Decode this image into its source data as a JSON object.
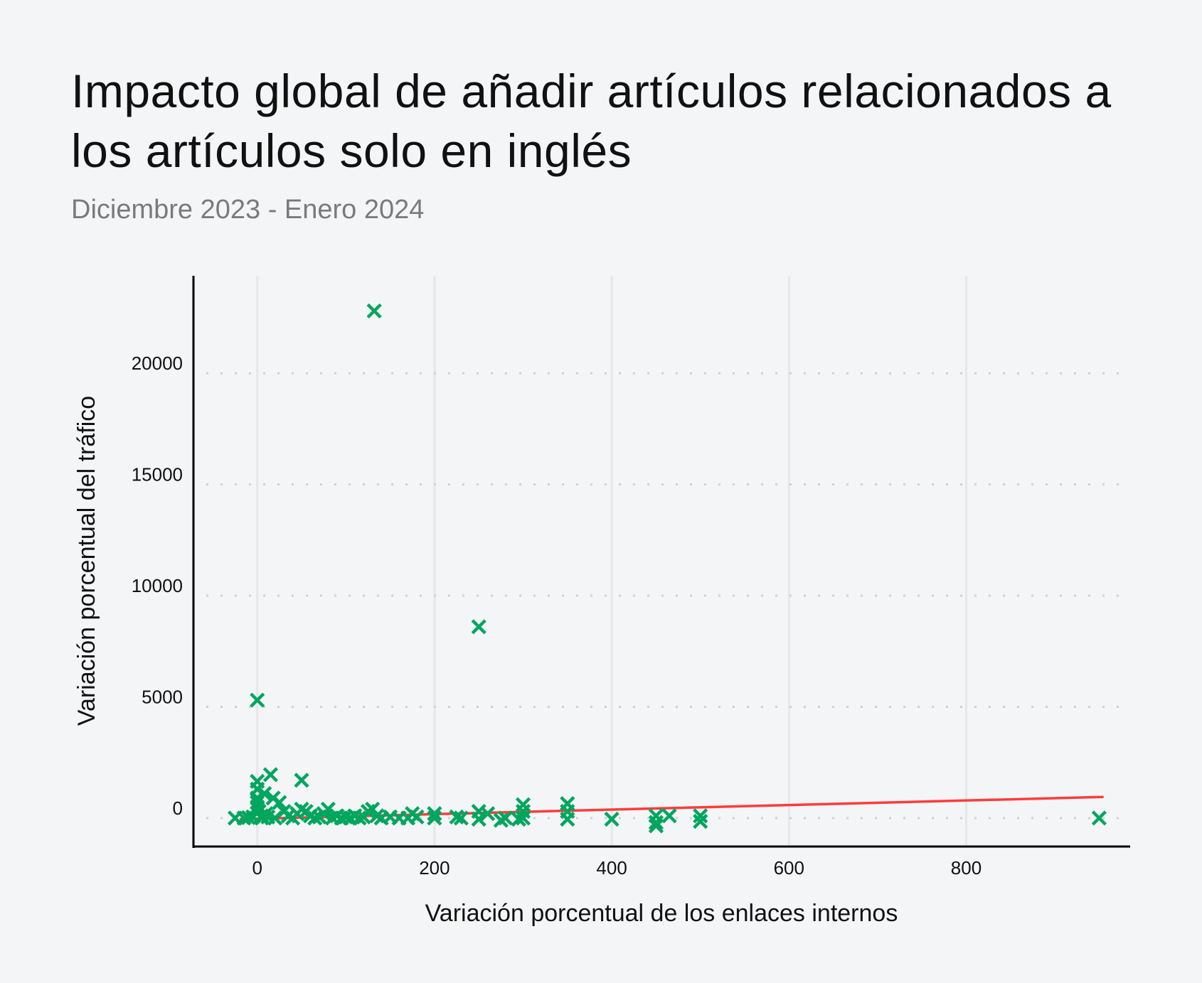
{
  "title": "Impacto global de añadir artículos relacionados a los artículos solo en inglés",
  "subtitle": "Diciembre 2023 - Enero 2024",
  "chart_data": {
    "type": "scatter",
    "title": "Impacto global de añadir artículos relacionados a los artículos solo en inglés",
    "subtitle": "Diciembre 2023 - Enero 2024",
    "xlabel": "Variación porcentual de los enlaces internos",
    "ylabel": "Variación porcentual del tráfico",
    "xlim": [
      -72,
      985
    ],
    "ylim": [
      -1280,
      24380
    ],
    "xticks": [
      0,
      200,
      400,
      600,
      800
    ],
    "yticks": [
      0,
      5000,
      10000,
      15000,
      20000
    ],
    "grid": {
      "x": "solid-light",
      "y": "dotted"
    },
    "colors": {
      "points": "#00a65e",
      "trendline": "#ff3b3b",
      "background": "#f4f5f7"
    },
    "marker": "x",
    "points": [
      [
        -25,
        0
      ],
      [
        -15,
        0
      ],
      [
        -10,
        20
      ],
      [
        -5,
        50
      ],
      [
        0,
        5300
      ],
      [
        0,
        1650
      ],
      [
        0,
        1300
      ],
      [
        0,
        900
      ],
      [
        0,
        700
      ],
      [
        0,
        500
      ],
      [
        2,
        300
      ],
      [
        5,
        100
      ],
      [
        5,
        0
      ],
      [
        8,
        1100
      ],
      [
        10,
        200
      ],
      [
        12,
        50
      ],
      [
        15,
        1950
      ],
      [
        18,
        900
      ],
      [
        20,
        0
      ],
      [
        25,
        700
      ],
      [
        30,
        300
      ],
      [
        35,
        100
      ],
      [
        40,
        0
      ],
      [
        45,
        200
      ],
      [
        50,
        1700
      ],
      [
        50,
        400
      ],
      [
        55,
        300
      ],
      [
        60,
        100
      ],
      [
        65,
        0
      ],
      [
        70,
        50
      ],
      [
        75,
        200
      ],
      [
        80,
        400
      ],
      [
        85,
        0
      ],
      [
        90,
        100
      ],
      [
        95,
        0
      ],
      [
        100,
        50
      ],
      [
        105,
        0
      ],
      [
        110,
        100
      ],
      [
        115,
        0
      ],
      [
        120,
        50
      ],
      [
        125,
        300
      ],
      [
        130,
        400
      ],
      [
        132,
        22800
      ],
      [
        135,
        100
      ],
      [
        140,
        0
      ],
      [
        150,
        50
      ],
      [
        160,
        0
      ],
      [
        170,
        0
      ],
      [
        175,
        200
      ],
      [
        180,
        50
      ],
      [
        200,
        200
      ],
      [
        200,
        0
      ],
      [
        225,
        50
      ],
      [
        230,
        0
      ],
      [
        250,
        8600
      ],
      [
        250,
        300
      ],
      [
        250,
        -50
      ],
      [
        260,
        200
      ],
      [
        275,
        -100
      ],
      [
        280,
        0
      ],
      [
        295,
        -50
      ],
      [
        300,
        600
      ],
      [
        300,
        300
      ],
      [
        300,
        0
      ],
      [
        350,
        650
      ],
      [
        350,
        300
      ],
      [
        350,
        -50
      ],
      [
        400,
        -50
      ],
      [
        450,
        100
      ],
      [
        450,
        -200
      ],
      [
        450,
        -350
      ],
      [
        465,
        100
      ],
      [
        500,
        100
      ],
      [
        500,
        -150
      ],
      [
        950,
        0
      ]
    ],
    "trendline": {
      "x": [
        -20,
        955
      ],
      "y": [
        -50,
        950
      ]
    }
  }
}
